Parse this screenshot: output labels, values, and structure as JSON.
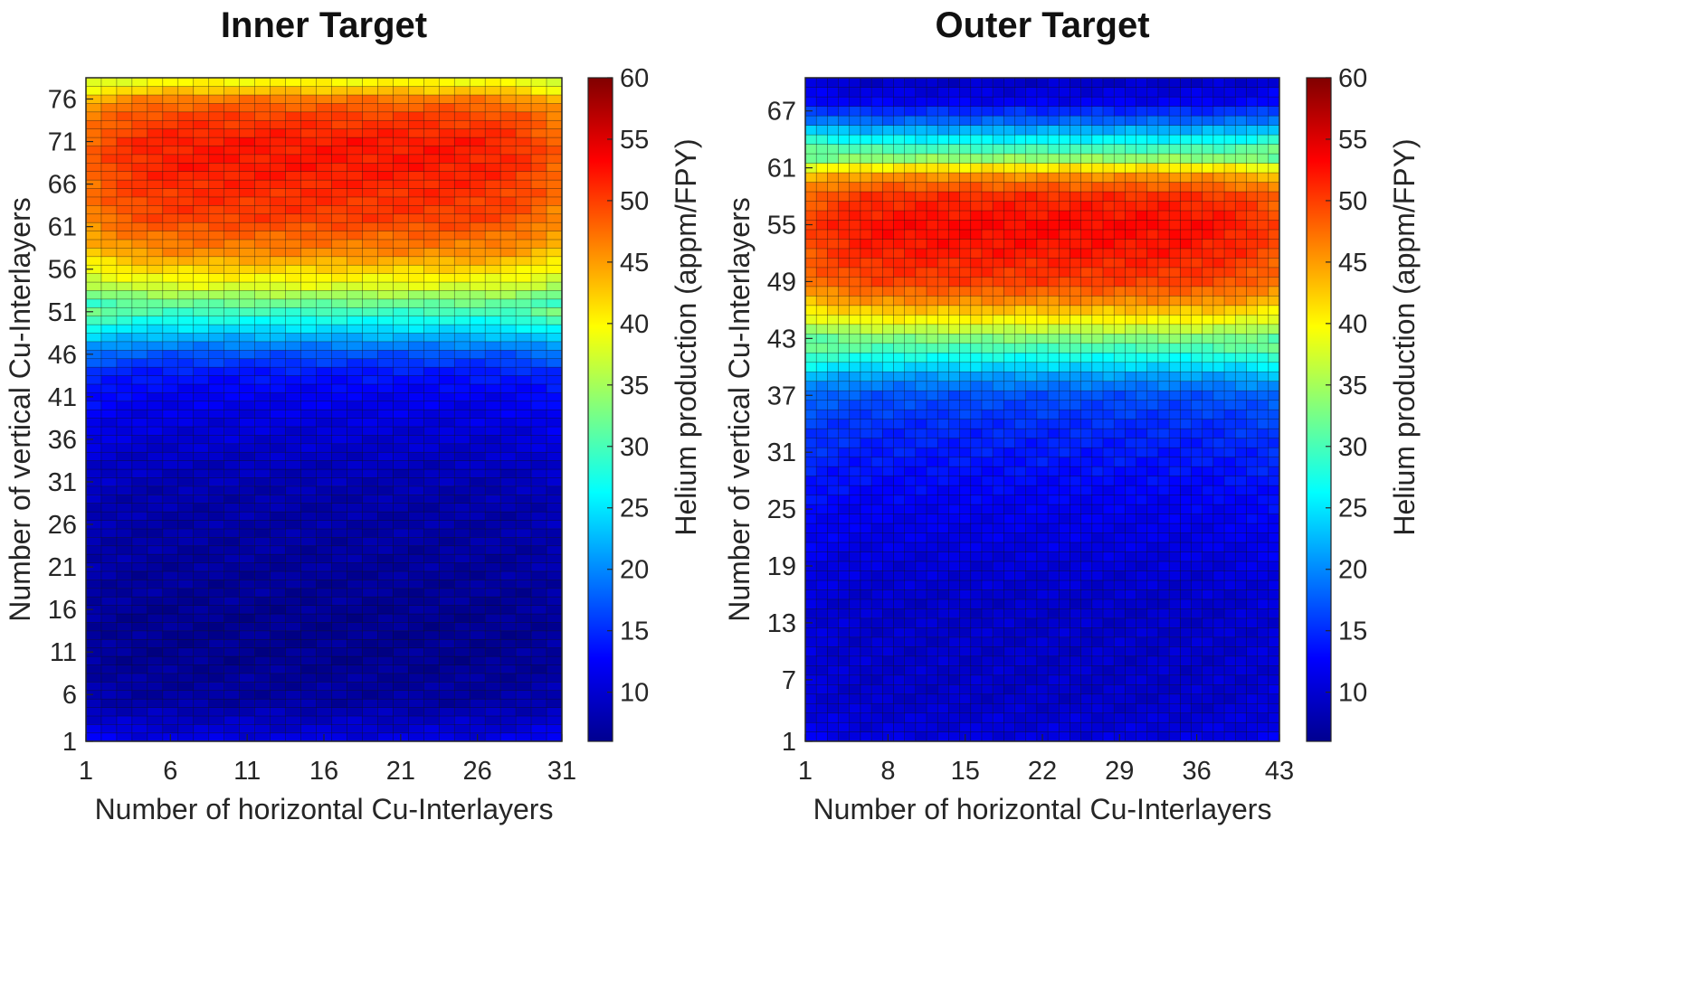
{
  "chart_data": [
    {
      "type": "heatmap",
      "title": "Inner Target",
      "xlabel": "Number of horizontal Cu-Interlayers",
      "ylabel": "Number of vertical Cu-Interlayers",
      "colorbar_label": "Helium production (appm/FPY)",
      "colormap": "jet",
      "x_range": [
        1,
        31
      ],
      "y_range": [
        1,
        78
      ],
      "x_ticks": [
        "1",
        "6",
        "11",
        "16",
        "21",
        "26",
        "31"
      ],
      "y_ticks": [
        "1",
        "6",
        "11",
        "16",
        "21",
        "26",
        "31",
        "36",
        "41",
        "46",
        "51",
        "56",
        "61",
        "66",
        "71",
        "76"
      ],
      "colorbar_ticks": [
        "10",
        "15",
        "20",
        "25",
        "30",
        "35",
        "40",
        "45",
        "50",
        "55",
        "60"
      ],
      "clim": [
        6,
        60
      ],
      "profile_y": [
        1,
        5,
        10,
        15,
        20,
        25,
        30,
        35,
        38,
        41,
        44,
        46,
        48,
        50,
        52,
        54,
        56,
        58,
        60,
        62,
        65,
        68,
        71,
        74,
        76,
        77,
        78
      ],
      "profile_value": [
        11,
        8,
        7,
        7,
        7.5,
        8,
        8.5,
        10,
        11,
        12,
        14,
        17,
        22,
        27,
        32,
        38,
        42,
        46,
        48,
        50,
        51,
        52,
        52,
        50,
        47,
        43,
        40
      ],
      "edge_effect": 0.12
    },
    {
      "type": "heatmap",
      "title": "Outer Target",
      "xlabel": "Number of horizontal Cu-Interlayers",
      "ylabel": "Number of vertical Cu-Interlayers",
      "colorbar_label": "Helium production (appm/FPY)",
      "colormap": "jet",
      "x_range": [
        1,
        43
      ],
      "y_range": [
        1,
        70
      ],
      "x_ticks": [
        "1",
        "8",
        "15",
        "22",
        "29",
        "36",
        "43"
      ],
      "y_ticks": [
        "1",
        "7",
        "13",
        "19",
        "25",
        "31",
        "37",
        "43",
        "49",
        "55",
        "61",
        "67"
      ],
      "colorbar_ticks": [
        "10",
        "15",
        "20",
        "25",
        "30",
        "35",
        "40",
        "45",
        "50",
        "55",
        "60"
      ],
      "clim": [
        6,
        60
      ],
      "profile_y": [
        1,
        5,
        10,
        15,
        20,
        25,
        28,
        31,
        34,
        37,
        39,
        41,
        43,
        45,
        47,
        49,
        52,
        55,
        58,
        60,
        61,
        62,
        64,
        66,
        68,
        70
      ],
      "profile_value": [
        11,
        10,
        10,
        10,
        11,
        12,
        13,
        14,
        15,
        17,
        21,
        27,
        33,
        40,
        46,
        50,
        52,
        53,
        51,
        46,
        41,
        34,
        26,
        18,
        12,
        10
      ],
      "edge_effect": 0.1
    }
  ]
}
